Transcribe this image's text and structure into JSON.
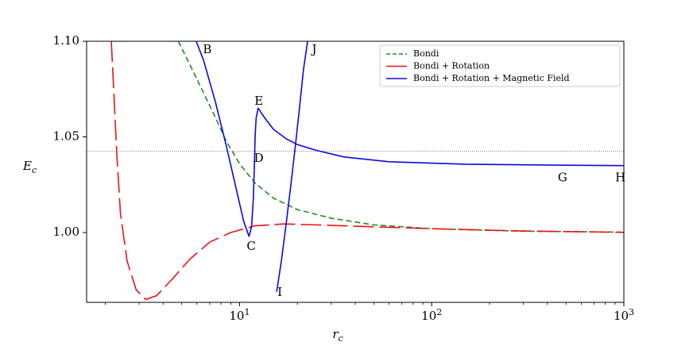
{
  "chart_data": {
    "type": "line",
    "title": "",
    "xlabel": {
      "main": "r",
      "sub": "c"
    },
    "ylabel": {
      "main": "E",
      "sub": "c"
    },
    "x_scale": "log",
    "xlim": [
      1.6,
      1000
    ],
    "ylim": [
      0.9635,
      1.1
    ],
    "x_ticks": [
      {
        "value": 10,
        "base": "10",
        "exp": "1"
      },
      {
        "value": 100,
        "base": "10",
        "exp": "2"
      },
      {
        "value": 1000,
        "base": "10",
        "exp": "3"
      }
    ],
    "y_ticks": [
      {
        "value": 1.0,
        "label": "1.00"
      },
      {
        "value": 1.05,
        "label": "1.05"
      },
      {
        "value": 1.1,
        "label": "1.10"
      }
    ],
    "grid": false,
    "legend_position": "top-right",
    "reference_line": {
      "y": 1.0425,
      "style": "dotted",
      "color": "#555555"
    },
    "series": [
      {
        "name": "Bondi",
        "color": "#228b22",
        "dash": "7,4",
        "points": [
          [
            4.8,
            1.1
          ],
          [
            5.5,
            1.088
          ],
          [
            6.5,
            1.073
          ],
          [
            7.5,
            1.06
          ],
          [
            8.5,
            1.048
          ],
          [
            10,
            1.036
          ],
          [
            12,
            1.026
          ],
          [
            15,
            1.018
          ],
          [
            20,
            1.012
          ],
          [
            30,
            1.0075
          ],
          [
            50,
            1.004
          ],
          [
            100,
            1.002
          ],
          [
            300,
            1.0007
          ],
          [
            1000,
            1.0002
          ]
        ]
      },
      {
        "name": "Bondi + Rotation",
        "color": "#ee1111",
        "dash": "26,7",
        "points": [
          [
            2.15,
            1.1
          ],
          [
            2.2,
            1.08
          ],
          [
            2.3,
            1.04
          ],
          [
            2.4,
            1.01
          ],
          [
            2.6,
            0.985
          ],
          [
            2.9,
            0.97
          ],
          [
            3.25,
            0.965
          ],
          [
            3.7,
            0.967
          ],
          [
            4.5,
            0.976
          ],
          [
            5.5,
            0.986
          ],
          [
            7,
            0.995
          ],
          [
            9,
            1.0
          ],
          [
            12,
            1.0035
          ],
          [
            17,
            1.0045
          ],
          [
            25,
            1.004
          ],
          [
            50,
            1.003
          ],
          [
            100,
            1.002
          ],
          [
            300,
            1.0008
          ],
          [
            1000,
            1.0001
          ]
        ]
      },
      {
        "name": "Bondi + Rotation + Magnetic Field",
        "color": "#0a0ae0",
        "dash": "",
        "branches": [
          [
            [
              5.95,
              1.1
            ],
            [
              6.5,
              1.09
            ],
            [
              7.5,
              1.068
            ],
            [
              8.5,
              1.046
            ],
            [
              9.5,
              1.025
            ],
            [
              10.5,
              1.006
            ],
            [
              11.2,
              0.998
            ],
            [
              11.55,
              1.003
            ],
            [
              11.8,
              1.018
            ],
            [
              11.95,
              1.036
            ],
            [
              12.05,
              1.05
            ],
            [
              12.2,
              1.06
            ],
            [
              12.5,
              1.065
            ],
            [
              13.5,
              1.06
            ],
            [
              15,
              1.054
            ],
            [
              17.5,
              1.049
            ],
            [
              20,
              1.046
            ],
            [
              25,
              1.043
            ],
            [
              35,
              1.0395
            ],
            [
              60,
              1.037
            ],
            [
              150,
              1.0357
            ],
            [
              500,
              1.0352
            ],
            [
              1000,
              1.035
            ]
          ],
          [
            [
              15.6,
              0.969
            ],
            [
              16.5,
              0.985
            ],
            [
              17.5,
              1.005
            ],
            [
              18.5,
              1.025
            ],
            [
              19.5,
              1.045
            ],
            [
              20.5,
              1.065
            ],
            [
              21.5,
              1.085
            ],
            [
              22.6,
              1.1
            ]
          ]
        ]
      }
    ],
    "point_labels": [
      {
        "text": "B",
        "x": 6.8,
        "y": 1.0955
      },
      {
        "text": "J",
        "x": 24.5,
        "y": 1.0955
      },
      {
        "text": "E",
        "x": 12.6,
        "y": 1.0685
      },
      {
        "text": "D",
        "x": 12.6,
        "y": 1.0385
      },
      {
        "text": "C",
        "x": 11.5,
        "y": 0.9925
      },
      {
        "text": "G",
        "x": 480,
        "y": 1.0285
      },
      {
        "text": "H",
        "x": 960,
        "y": 1.0285
      },
      {
        "text": "I",
        "x": 16.2,
        "y": 0.9685
      }
    ]
  }
}
